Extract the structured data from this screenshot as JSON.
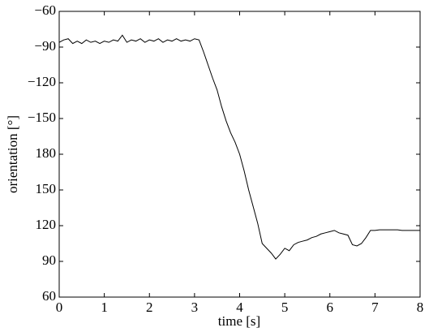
{
  "chart_data": {
    "type": "line",
    "xlabel": "time [s]",
    "ylabel": "orientation [°]",
    "x": [
      0,
      0.1,
      0.2,
      0.3,
      0.4,
      0.5,
      0.6,
      0.7,
      0.8,
      0.9,
      1.0,
      1.1,
      1.2,
      1.3,
      1.4,
      1.5,
      1.6,
      1.7,
      1.8,
      1.9,
      2.0,
      2.1,
      2.2,
      2.3,
      2.4,
      2.5,
      2.6,
      2.7,
      2.8,
      2.9,
      3.0,
      3.1,
      3.2,
      3.3,
      3.4,
      3.5,
      3.6,
      3.7,
      3.8,
      3.9,
      4.0,
      4.1,
      4.2,
      4.3,
      4.4,
      4.5,
      4.6,
      4.7,
      4.8,
      4.9,
      5.0,
      5.1,
      5.2,
      5.3,
      5.4,
      5.5,
      5.6,
      5.7,
      5.8,
      5.9,
      6.0,
      6.1,
      6.2,
      6.3,
      6.4,
      6.5,
      6.6,
      6.7,
      6.8,
      6.9,
      7.0,
      7.1,
      7.2,
      7.3,
      7.4,
      7.5,
      7.6,
      7.7,
      7.8,
      7.9,
      8.0
    ],
    "series": [
      {
        "color": "#000000",
        "values": [
          274,
          276,
          277,
          273,
          275,
          273,
          276,
          274,
          275,
          273,
          275,
          274,
          276,
          275,
          280,
          274,
          276,
          275,
          277,
          274,
          276,
          275,
          277,
          274,
          276,
          275,
          277,
          275,
          276,
          275,
          277,
          276,
          266,
          255,
          244,
          234,
          220,
          208,
          198,
          190,
          180,
          166,
          150,
          136,
          122,
          105,
          101,
          97,
          92,
          96,
          101,
          99,
          104,
          106,
          107,
          108,
          110,
          111,
          113,
          114,
          115,
          116,
          114,
          113,
          112,
          104,
          103,
          105,
          110,
          116,
          116,
          116.5,
          116.5,
          116.5,
          116.5,
          116.5,
          116,
          116,
          116,
          116,
          116
        ]
      }
    ],
    "xlim": [
      0,
      8
    ],
    "xticks": [
      0,
      1,
      2,
      3,
      4,
      5,
      6,
      7,
      8
    ],
    "ylim": [
      60,
      300
    ],
    "yticks": [
      {
        "value": 300,
        "label": "−60"
      },
      {
        "value": 270,
        "label": "−90"
      },
      {
        "value": 240,
        "label": "−120"
      },
      {
        "value": 210,
        "label": "−150"
      },
      180,
      150,
      120,
      90,
      60
    ],
    "grid": false
  }
}
